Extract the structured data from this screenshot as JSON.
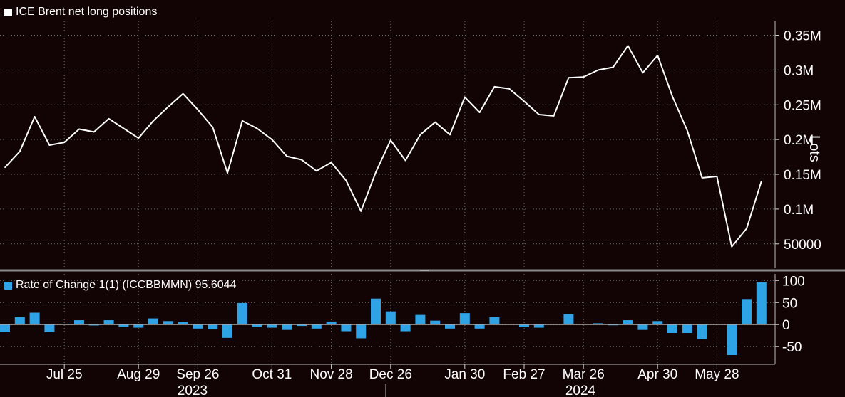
{
  "colors": {
    "background": "#120304",
    "grid": "#6e6e6e",
    "line": "#ffffff",
    "bars": "#2ea3e6",
    "separator": "#8a8a8a",
    "text": "#ffffff"
  },
  "chart_data": [
    {
      "type": "line",
      "legend": "ICE Brent net long positions",
      "ylabel": "Lots",
      "ylim": [
        15000,
        370000
      ],
      "yticks": [
        50000,
        100000,
        150000,
        200000,
        250000,
        300000,
        350000
      ],
      "ytick_labels": [
        "50000",
        "0.1M",
        "0.15M",
        "0.2M",
        "0.25M",
        "0.3M",
        "0.35M"
      ],
      "grid": true,
      "series": [
        {
          "values": [
            160000,
            183000,
            233000,
            192000,
            196000,
            215000,
            211000,
            230000,
            216000,
            202000,
            227000,
            247000,
            266000,
            243000,
            218000,
            152000,
            227000,
            216000,
            200000,
            176000,
            171000,
            155000,
            167000,
            141000,
            97000,
            153000,
            199000,
            170000,
            207000,
            225000,
            207000,
            261000,
            239000,
            276000,
            273000,
            255000,
            236000,
            234000,
            289000,
            290000,
            300000,
            304000,
            335000,
            296000,
            321000,
            262000,
            213000,
            145000,
            147000,
            46000,
            72000,
            140000
          ]
        }
      ]
    },
    {
      "type": "bar",
      "legend": "Rate of Change 1(1) (ICCBBMMN) 95.6044",
      "ylim": [
        -90,
        115
      ],
      "yticks": [
        -50,
        0,
        50,
        100
      ],
      "ytick_labels": [
        "-50",
        "0",
        "50",
        "100"
      ],
      "grid": true,
      "series": [
        {
          "values": [
            -17,
            17,
            27,
            -17,
            2,
            10,
            -2,
            10,
            -5,
            -7,
            14,
            8,
            6,
            -9,
            -11,
            -30,
            49,
            -5,
            -7,
            -12,
            -3,
            -9,
            7,
            -15,
            -31,
            59,
            30,
            -15,
            22,
            9,
            -9,
            26,
            -9,
            17,
            0,
            -6,
            -7,
            0,
            23,
            0,
            3,
            -1,
            10,
            -12,
            8,
            -19,
            -19,
            -33,
            0,
            -69,
            58,
            96
          ]
        }
      ]
    }
  ],
  "x_axis": {
    "tick_labels": [
      "Jul 25",
      "Aug 29",
      "Sep 26",
      "Oct 31",
      "Nov 28",
      "Dec 26",
      "Jan 30",
      "Feb 27",
      "Mar 26",
      "Apr 30",
      "May 28"
    ],
    "tick_indices": [
      4,
      9,
      13,
      18,
      22,
      26,
      31,
      35,
      39,
      44,
      48
    ],
    "years": [
      "2023",
      "2024"
    ]
  }
}
